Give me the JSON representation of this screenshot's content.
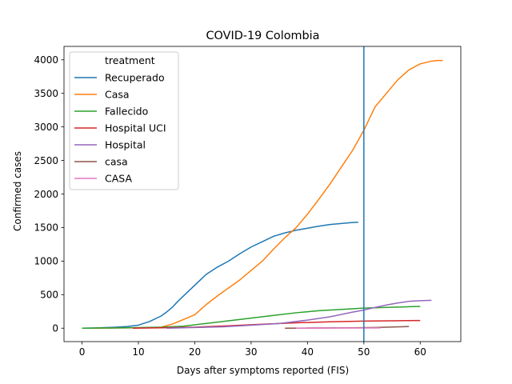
{
  "chart_data": {
    "type": "line",
    "title": "COVID-19 Colombia",
    "xlabel": "Days after symptoms reported (FIS)",
    "ylabel": "Confirmed cases",
    "xlim": [
      -3.2,
      67.2
    ],
    "ylim": [
      -200,
      4200
    ],
    "xticks": [
      "0",
      "10",
      "20",
      "30",
      "40",
      "50",
      "60"
    ],
    "yticks": [
      "0",
      "500",
      "1000",
      "1500",
      "2000",
      "2500",
      "3000",
      "3500",
      "4000"
    ],
    "grid": false,
    "legend": {
      "title": "treatment",
      "placement": "upper-left"
    },
    "vline": {
      "x": 50,
      "color": "#1f77b4"
    },
    "series": [
      {
        "name": "Recuperado",
        "color": "#1f77b4",
        "x": [
          0,
          2,
          4,
          6,
          8,
          10,
          12,
          14,
          15,
          16,
          17,
          18,
          20,
          22,
          24,
          26,
          28,
          30,
          32,
          34,
          36,
          38,
          40,
          42,
          44,
          46,
          48,
          49
        ],
        "y": [
          0,
          3,
          8,
          15,
          25,
          45,
          100,
          180,
          240,
          310,
          400,
          480,
          640,
          800,
          910,
          1000,
          1110,
          1210,
          1290,
          1370,
          1420,
          1460,
          1490,
          1520,
          1545,
          1560,
          1575,
          1580
        ]
      },
      {
        "name": "Casa",
        "color": "#ff7f0e",
        "x": [
          2,
          6,
          10,
          14,
          16,
          18,
          20,
          22,
          24,
          26,
          28,
          30,
          32,
          34,
          36,
          38,
          40,
          42,
          44,
          46,
          48,
          50,
          52,
          54,
          56,
          58,
          60,
          62,
          63,
          64
        ],
        "y": [
          0,
          2,
          5,
          15,
          60,
          130,
          200,
          350,
          480,
          600,
          720,
          860,
          1000,
          1180,
          1350,
          1500,
          1700,
          1920,
          2150,
          2400,
          2650,
          2950,
          3300,
          3500,
          3700,
          3850,
          3940,
          3980,
          3990,
          3990
        ]
      },
      {
        "name": "Fallecido",
        "color": "#2ca02c",
        "x": [
          0,
          5,
          10,
          14,
          18,
          22,
          26,
          30,
          34,
          38,
          42,
          46,
          50,
          54,
          58,
          60
        ],
        "y": [
          0,
          3,
          8,
          15,
          30,
          70,
          110,
          150,
          190,
          230,
          260,
          280,
          300,
          310,
          320,
          325
        ]
      },
      {
        "name": "Hospital UCI",
        "color": "#d62728",
        "x": [
          9,
          14,
          20,
          26,
          32,
          38,
          44,
          50,
          55,
          60
        ],
        "y": [
          0,
          5,
          15,
          35,
          60,
          80,
          95,
          105,
          110,
          115
        ]
      },
      {
        "name": "Hospital",
        "color": "#9467bd",
        "x": [
          15,
          20,
          25,
          30,
          35,
          40,
          44,
          48,
          50,
          52,
          54,
          56,
          58,
          60,
          62
        ],
        "y": [
          0,
          10,
          20,
          45,
          70,
          120,
          170,
          240,
          270,
          310,
          345,
          375,
          400,
          410,
          415
        ]
      },
      {
        "name": "casa",
        "color": "#8c564b",
        "x": [
          36,
          40,
          44,
          48,
          52,
          55,
          58
        ],
        "y": [
          0,
          2,
          4,
          6,
          10,
          18,
          25
        ]
      },
      {
        "name": "CASA",
        "color": "#e377c2",
        "x": [
          38,
          42,
          46,
          50,
          53
        ],
        "y": [
          0,
          1,
          2,
          3,
          4
        ]
      }
    ]
  }
}
